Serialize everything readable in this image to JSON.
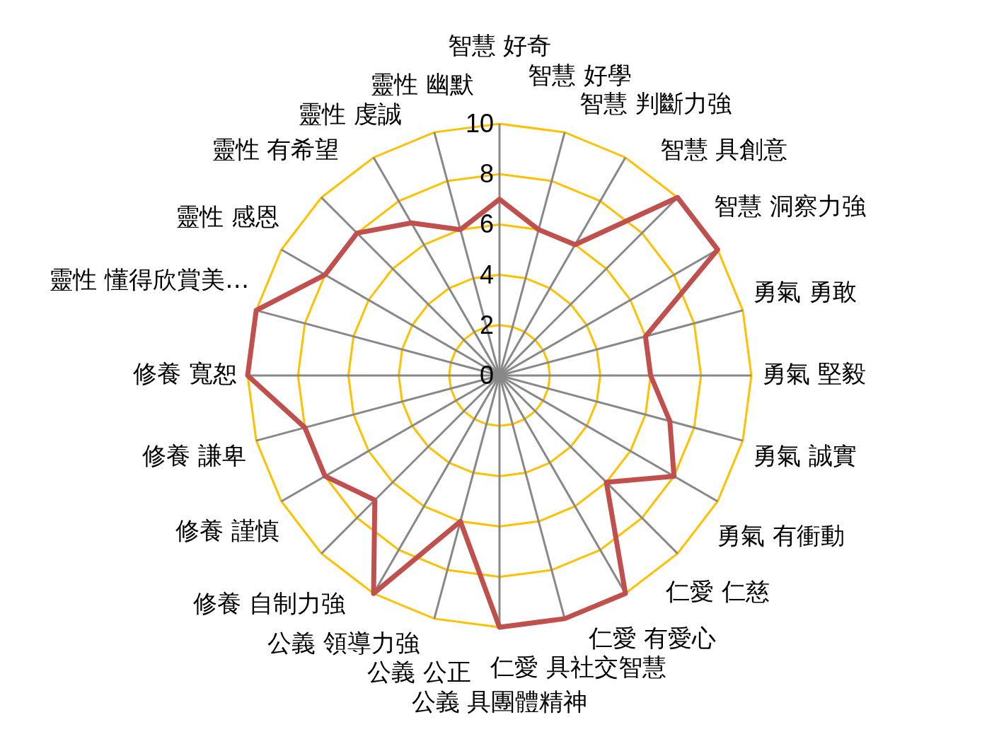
{
  "chart_data": {
    "type": "radar",
    "categories": [
      "智慧 好奇",
      "智慧 好學",
      "智慧 判斷力強",
      "智慧 具創意",
      "智慧 洞察力強",
      "勇氣 勇敢",
      "勇氣 堅毅",
      "勇氣 誠實",
      "勇氣 有衝動",
      "仁愛 仁慈",
      "仁愛 有愛心",
      "仁愛 具社交智慧",
      "公義 具團體精神",
      "公義 公正",
      "公義 領導力強",
      "修養 自制力強",
      "修養 謹慎",
      "修養 謙卑",
      "修養 寬恕",
      "靈性 懂得欣賞美…",
      "靈性 感恩",
      "靈性 有希望",
      "靈性 虔誠",
      "靈性 幽默"
    ],
    "series": [
      {
        "color": "#c0504d",
        "values": [
          7,
          6,
          6,
          10,
          10,
          6,
          6,
          7,
          8,
          6,
          10,
          10,
          10,
          6,
          10,
          7,
          8,
          8,
          10,
          10,
          8,
          8,
          7,
          6
        ]
      }
    ],
    "ylim": [
      0,
      10
    ],
    "yticks": [
      0,
      2,
      4,
      6,
      8,
      10
    ],
    "grid": true,
    "legend": false,
    "marker": "none"
  }
}
